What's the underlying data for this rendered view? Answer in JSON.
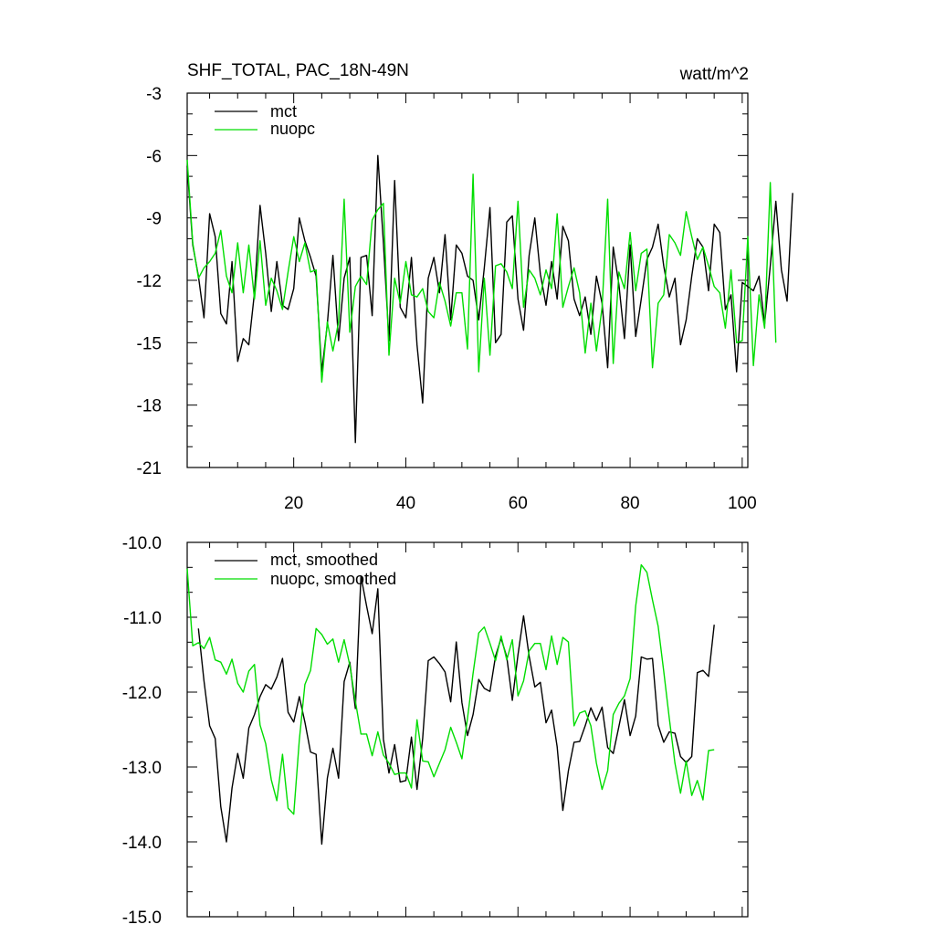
{
  "chart_data": [
    {
      "type": "line",
      "title": "SHF_TOTAL, PAC_18N-49N",
      "units": "watt/m^2",
      "xlim": [
        1,
        101
      ],
      "ylim": [
        -21,
        -3
      ],
      "yticks": [
        -3,
        -6,
        -9,
        -12,
        -15,
        -18,
        -21
      ],
      "xticks": [
        20,
        40,
        60,
        80,
        100
      ],
      "legend_position": "top-left",
      "legend": [
        "mct",
        "nuopc"
      ],
      "series": [
        {
          "name": "mct",
          "color": "#000000",
          "x_start": 1,
          "values": [
            -6.5,
            -10.3,
            -11.8,
            -13.8,
            -8.8,
            -9.9,
            -13.6,
            -14.1,
            -11.1,
            -15.9,
            -14.8,
            -15.1,
            -12.6,
            -8.4,
            -10.7,
            -13.5,
            -11.1,
            -13.2,
            -13.4,
            -12.4,
            -9.0,
            -10.1,
            -10.9,
            -11.8,
            -16.4,
            -14.1,
            -10.8,
            -14.9,
            -11.9,
            -10.9,
            -19.8,
            -10.9,
            -10.8,
            -13.7,
            -6.0,
            -10.2,
            -14.9,
            -7.2,
            -13.3,
            -13.8,
            -10.9,
            -15.1,
            -17.9,
            -11.9,
            -10.9,
            -12.6,
            -9.8,
            -13.9,
            -10.3,
            -10.7,
            -11.8,
            -12.0,
            -13.9,
            -11.4,
            -8.5,
            -15.0,
            -14.6,
            -9.2,
            -8.9,
            -12.9,
            -14.4,
            -10.8,
            -9.0,
            -11.7,
            -13.2,
            -11.1,
            -12.9,
            -9.4,
            -10.1,
            -12.9,
            -13.7,
            -12.8,
            -14.6,
            -11.8,
            -13.1,
            -16.2,
            -10.4,
            -12.2,
            -14.8,
            -10.3,
            -14.7,
            -12.9,
            -11.0,
            -10.4,
            -9.3,
            -11.3,
            -12.8,
            -11.9,
            -15.1,
            -13.9,
            -11.8,
            -10.0,
            -10.4,
            -12.5,
            -9.3,
            -9.7,
            -13.4,
            -12.7,
            -16.4,
            -12.1,
            -12.3,
            -12.5,
            -11.8,
            -14.1,
            -11.3,
            -8.2,
            -11.5,
            -13.0,
            -7.8
          ]
        },
        {
          "name": "nuopc",
          "color": "#00dd00",
          "x_start": 1,
          "values": [
            -6.2,
            -10.2,
            -11.9,
            -11.4,
            -11.1,
            -10.7,
            -9.6,
            -11.8,
            -12.6,
            -10.2,
            -12.6,
            -10.3,
            -12.9,
            -10.1,
            -13.2,
            -11.9,
            -12.5,
            -13.4,
            -11.6,
            -9.9,
            -11.1,
            -10.2,
            -11.6,
            -11.5,
            -16.9,
            -14.0,
            -15.4,
            -14.0,
            -8.1,
            -14.5,
            -12.3,
            -11.8,
            -12.2,
            -9.1,
            -8.6,
            -8.3,
            -15.6,
            -11.9,
            -13.1,
            -11.1,
            -12.7,
            -12.8,
            -12.4,
            -13.5,
            -13.8,
            -12.1,
            -13.0,
            -14.2,
            -12.6,
            -12.6,
            -15.3,
            -6.9,
            -16.4,
            -11.9,
            -15.6,
            -11.3,
            -11.2,
            -11.6,
            -12.4,
            -8.2,
            -13.3,
            -11.5,
            -11.9,
            -12.7,
            -11.5,
            -12.4,
            -8.8,
            -13.3,
            -12.3,
            -11.4,
            -12.6,
            -15.5,
            -13.1,
            -15.4,
            -13.3,
            -8.1,
            -16.0,
            -11.6,
            -12.4,
            -9.7,
            -12.5,
            -10.7,
            -10.5,
            -16.2,
            -13.1,
            -12.7,
            -9.8,
            -10.2,
            -10.8,
            -8.7,
            -9.9,
            -11.0,
            -10.4,
            -11.3,
            -12.3,
            -12.6,
            -14.3,
            -11.5,
            -15.0,
            -14.9,
            -9.9,
            -16.1,
            -12.7,
            -14.3,
            -7.3,
            -15.0
          ]
        }
      ]
    },
    {
      "type": "line",
      "title": "",
      "ylim": [
        -15.0,
        -10.0
      ],
      "yticks": [
        -10.0,
        -11.0,
        -12.0,
        -13.0,
        -14.0,
        -15.0
      ],
      "legend_position": "top-left",
      "legend": [
        "mct, smoothed",
        "nuopc, smoothed"
      ],
      "series": [
        {
          "name": "mct, smoothed",
          "color": "#000000",
          "x_start": 3,
          "values": [
            -11.15,
            -11.85,
            -12.45,
            -12.62,
            -13.53,
            -14.0,
            -13.28,
            -12.82,
            -13.15,
            -12.48,
            -12.3,
            -12.06,
            -11.9,
            -11.96,
            -11.8,
            -11.55,
            -12.27,
            -12.4,
            -12.06,
            -12.4,
            -12.8,
            -12.83,
            -14.03,
            -13.15,
            -12.75,
            -13.15,
            -11.86,
            -11.6,
            -12.22,
            -10.45,
            -10.85,
            -11.22,
            -10.62,
            -12.63,
            -13.08,
            -12.7,
            -13.2,
            -13.18,
            -12.6,
            -13.3,
            -12.62,
            -11.58,
            -11.53,
            -11.62,
            -11.73,
            -12.13,
            -11.33,
            -12.14,
            -12.58,
            -12.3,
            -11.83,
            -11.95,
            -11.99,
            -11.52,
            -11.28,
            -11.53,
            -12.11,
            -11.5,
            -10.98,
            -11.52,
            -11.93,
            -11.87,
            -12.41,
            -12.24,
            -12.73,
            -13.58,
            -13.05,
            -12.67,
            -12.66,
            -12.45,
            -12.21,
            -12.38,
            -12.2,
            -12.74,
            -12.82,
            -12.46,
            -12.1,
            -12.58,
            -12.32,
            -11.53,
            -11.56,
            -11.55,
            -12.44,
            -12.67,
            -12.53,
            -12.55,
            -12.86,
            -12.94,
            -12.86,
            -11.74,
            -11.71,
            -11.79,
            -11.1
          ]
        },
        {
          "name": "nuopc, smoothed",
          "color": "#00dd00",
          "x_start": 1,
          "values": [
            -10.35,
            -11.38,
            -11.34,
            -11.42,
            -11.27,
            -11.57,
            -11.6,
            -11.76,
            -11.56,
            -11.88,
            -12.0,
            -11.72,
            -11.63,
            -12.44,
            -12.69,
            -13.17,
            -13.45,
            -12.83,
            -13.55,
            -13.63,
            -12.64,
            -11.9,
            -11.71,
            -11.15,
            -11.23,
            -11.36,
            -11.29,
            -11.6,
            -11.3,
            -11.64,
            -12.12,
            -12.56,
            -12.56,
            -12.85,
            -12.53,
            -12.84,
            -12.95,
            -13.1,
            -13.08,
            -13.08,
            -13.28,
            -12.37,
            -12.92,
            -12.93,
            -13.13,
            -12.95,
            -12.77,
            -12.47,
            -12.67,
            -12.89,
            -12.35,
            -11.75,
            -11.21,
            -11.13,
            -11.35,
            -11.58,
            -11.25,
            -11.57,
            -11.3,
            -12.05,
            -11.85,
            -11.45,
            -11.35,
            -11.35,
            -11.7,
            -11.25,
            -11.63,
            -11.27,
            -11.33,
            -12.45,
            -12.28,
            -12.25,
            -12.45,
            -12.95,
            -13.3,
            -13.05,
            -12.3,
            -12.15,
            -12.05,
            -11.82,
            -10.85,
            -10.3,
            -10.4,
            -10.77,
            -11.12,
            -11.72,
            -12.35,
            -12.95,
            -13.35,
            -12.92,
            -13.38,
            -13.18,
            -13.44,
            -12.78,
            -12.77
          ]
        }
      ]
    }
  ]
}
